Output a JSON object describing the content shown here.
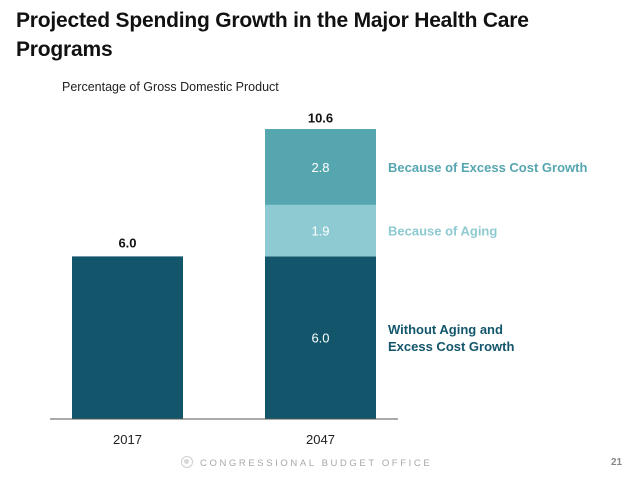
{
  "header": {
    "title": "Projected Spending Growth in the Major Health Care Programs",
    "subtitle": "Percentage of Gross Domestic Product"
  },
  "footer": {
    "icon": "cbo-seal-icon",
    "organization": "CONGRESSIONAL BUDGET OFFICE",
    "page_number": "21"
  },
  "colors": {
    "base": "#13566b",
    "aging": "#8ecad1",
    "excess": "#56a6b0",
    "axis": "#555555"
  },
  "chart_data": {
    "type": "bar",
    "stacked": true,
    "title": "Projected Spending Growth in the Major Health Care Programs",
    "ylabel": "Percentage of Gross Domestic Product",
    "xlabel": "",
    "categories": [
      "2017",
      "2047"
    ],
    "series": [
      {
        "name": "Without Aging and Excess Cost Growth",
        "legend_lines": [
          "Without Aging and",
          "Excess Cost Growth"
        ],
        "values": [
          6.0,
          6.0
        ],
        "color_key": "base",
        "show_segment_labels": [
          false,
          true
        ]
      },
      {
        "name": "Because of Aging",
        "legend_lines": [
          "Because of Aging"
        ],
        "values": [
          0,
          1.9
        ],
        "color_key": "aging",
        "show_segment_labels": [
          false,
          true
        ]
      },
      {
        "name": "Because of Excess Cost Growth",
        "legend_lines": [
          "Because of Excess Cost Growth"
        ],
        "values": [
          0,
          2.8
        ],
        "color_key": "excess",
        "show_segment_labels": [
          false,
          true
        ]
      }
    ],
    "totals": [
      6.0,
      10.6
    ],
    "total_labels": [
      "6.0",
      "10.6"
    ],
    "segment_labels": [
      [
        "",
        "6.0"
      ],
      [
        "",
        "1.9"
      ],
      [
        "",
        "2.8"
      ]
    ],
    "ylim": [
      0,
      11.2
    ],
    "grid": false,
    "legend": "right, inline beside 2047 segments"
  }
}
